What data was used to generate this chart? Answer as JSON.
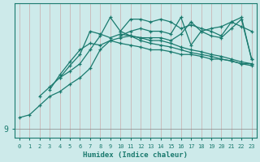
{
  "xlabel": "Humidex (Indice chaleur)",
  "bg_color": "#cdeaea",
  "line_color": "#1a7a6e",
  "xlim": [
    -0.5,
    23.5
  ],
  "xticks": [
    0,
    1,
    2,
    3,
    4,
    5,
    6,
    7,
    8,
    9,
    10,
    11,
    12,
    13,
    14,
    15,
    16,
    17,
    18,
    19,
    20,
    21,
    22,
    23
  ],
  "ytick_val": 9.0,
  "ytick_label": "9",
  "ymin": 8.0,
  "ymax": 22.5,
  "grid_color": "#c8a0a0",
  "series": [
    {
      "x": [
        0,
        1,
        2,
        3,
        4,
        5,
        6,
        7,
        8,
        9,
        10,
        11,
        12,
        13,
        14,
        15,
        16,
        17,
        18,
        19,
        20,
        21,
        22,
        23
      ],
      "y": [
        10.2,
        10.5,
        11.5,
        12.5,
        13.0,
        13.8,
        14.5,
        15.5,
        17.5,
        18.5,
        18.2,
        18.0,
        17.8,
        17.5,
        17.5,
        17.3,
        17.0,
        17.0,
        16.8,
        16.5,
        16.5,
        16.3,
        16.0,
        16.0
      ]
    },
    {
      "x": [
        2,
        3,
        4,
        5,
        6,
        7,
        8,
        9,
        10,
        11,
        12,
        13,
        14,
        15,
        16,
        17,
        18,
        19,
        20,
        21,
        22,
        23
      ],
      "y": [
        12.5,
        13.5,
        14.5,
        15.2,
        16.0,
        17.5,
        19.0,
        21.0,
        19.5,
        19.0,
        18.5,
        18.2,
        18.0,
        17.8,
        17.5,
        17.2,
        17.0,
        16.8,
        16.5,
        16.3,
        16.0,
        15.8
      ]
    },
    {
      "x": [
        3,
        4,
        5,
        6,
        7,
        8,
        9,
        10,
        11,
        12,
        13,
        14,
        15,
        16,
        17,
        18,
        19,
        20,
        21,
        22,
        23
      ],
      "y": [
        13.2,
        14.8,
        16.2,
        17.5,
        18.2,
        18.0,
        18.5,
        18.8,
        19.0,
        18.8,
        18.5,
        18.5,
        18.2,
        17.8,
        17.5,
        17.3,
        17.0,
        16.8,
        16.5,
        16.2,
        16.0
      ]
    },
    {
      "x": [
        4,
        5,
        6,
        7,
        8,
        9,
        10,
        11,
        12,
        13,
        14,
        15,
        16,
        17,
        18,
        19,
        20,
        21,
        22,
        23
      ],
      "y": [
        14.5,
        15.8,
        17.0,
        19.5,
        19.2,
        18.8,
        19.2,
        19.0,
        18.8,
        18.8,
        18.8,
        18.5,
        19.2,
        20.5,
        19.5,
        19.8,
        20.0,
        20.5,
        20.0,
        19.5
      ]
    },
    {
      "x": [
        10,
        11,
        12,
        13,
        14,
        15,
        16,
        17,
        18,
        19,
        20,
        21,
        22,
        23
      ],
      "y": [
        19.5,
        20.8,
        20.8,
        20.5,
        20.8,
        20.5,
        19.8,
        20.2,
        19.8,
        19.5,
        19.0,
        20.5,
        21.0,
        16.5
      ]
    },
    {
      "x": [
        10,
        11,
        12,
        13,
        14,
        15,
        16,
        17,
        18,
        19,
        20,
        21,
        22,
        23
      ],
      "y": [
        19.0,
        19.5,
        19.8,
        19.5,
        19.5,
        19.2,
        21.0,
        18.0,
        19.5,
        19.0,
        18.8,
        19.8,
        20.8,
        16.5
      ]
    }
  ]
}
